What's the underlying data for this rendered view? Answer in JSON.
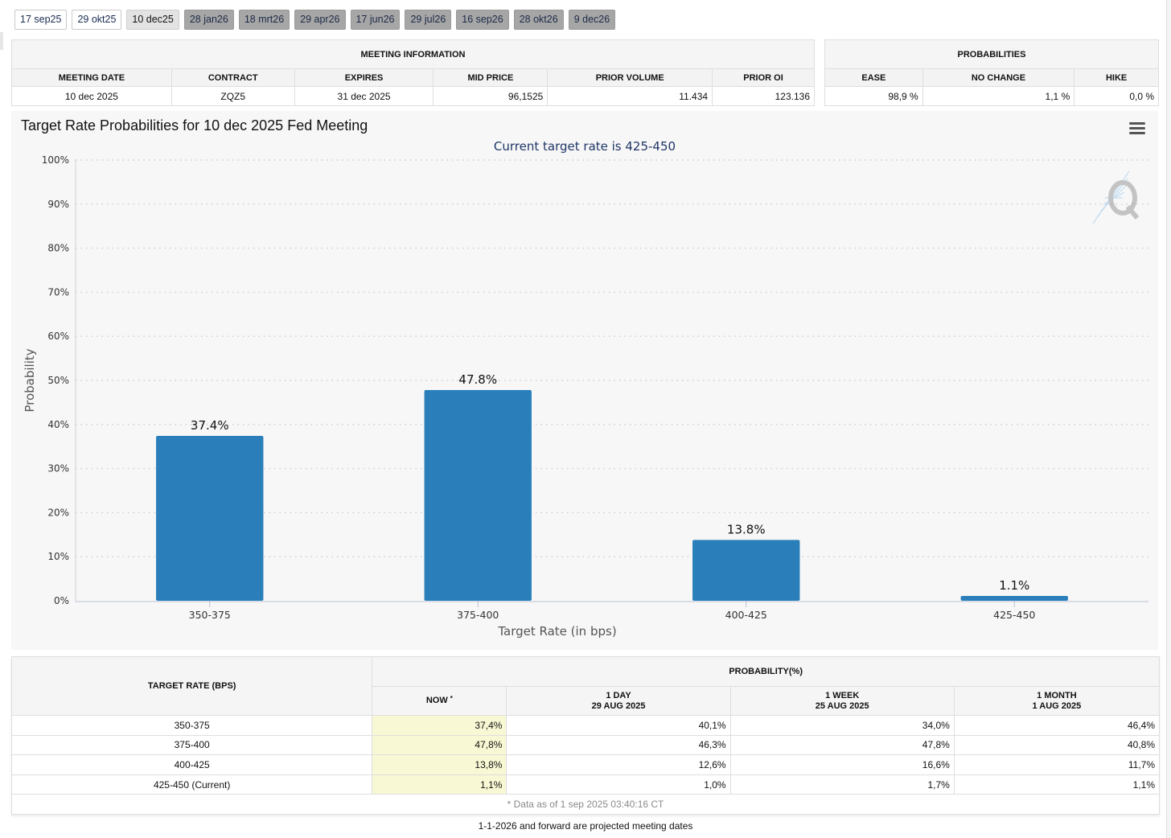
{
  "tabs": [
    {
      "label": "17 sep25",
      "state": "past"
    },
    {
      "label": "29 okt25",
      "state": "past"
    },
    {
      "label": "10 dec25",
      "state": "selected"
    },
    {
      "label": "28 jan26",
      "state": "future"
    },
    {
      "label": "18 mrt26",
      "state": "future"
    },
    {
      "label": "29 apr26",
      "state": "future"
    },
    {
      "label": "17 jun26",
      "state": "future"
    },
    {
      "label": "29 jul26",
      "state": "future"
    },
    {
      "label": "16 sep26",
      "state": "future"
    },
    {
      "label": "28 okt26",
      "state": "future"
    },
    {
      "label": "9 dec26",
      "state": "future"
    }
  ],
  "meeting_info": {
    "caption": "MEETING INFORMATION",
    "headers": [
      "MEETING DATE",
      "CONTRACT",
      "EXPIRES",
      "MID PRICE",
      "PRIOR VOLUME",
      "PRIOR OI"
    ],
    "row": [
      "10 dec 2025",
      "ZQZ5",
      "31 dec 2025",
      "96,1525",
      "11.434",
      "123.136"
    ]
  },
  "probabilities": {
    "caption": "PROBABILITIES",
    "headers": [
      "EASE",
      "NO CHANGE",
      "HIKE"
    ],
    "row": [
      "98,9 %",
      "1,1 %",
      "0,0 %"
    ]
  },
  "chart_title": "Target Rate Probabilities for 10 dec 2025 Fed Meeting",
  "chart_data": {
    "type": "bar",
    "title": "Target Rate Probabilities for 10 dec 2025 Fed Meeting",
    "subtitle": "Current target rate is 425-450",
    "categories": [
      "350-375",
      "375-400",
      "400-425",
      "425-450"
    ],
    "values": [
      37.4,
      47.8,
      13.8,
      1.1
    ],
    "data_labels": [
      "37.4%",
      "47.8%",
      "13.8%",
      "1.1%"
    ],
    "xlabel": "Target Rate (in bps)",
    "ylabel": "Probability",
    "ylim": [
      0,
      100
    ],
    "yticks": [
      0,
      10,
      20,
      30,
      40,
      50,
      60,
      70,
      80,
      90,
      100
    ],
    "ytick_labels": [
      "0%",
      "10%",
      "20%",
      "30%",
      "40%",
      "50%",
      "60%",
      "70%",
      "80%",
      "90%",
      "100%"
    ],
    "grid": true,
    "bar_color": "#2a7fba"
  },
  "prob_table": {
    "col_target": "TARGET RATE (BPS)",
    "group_header": "PROBABILITY(%)",
    "now_label": "NOW",
    "now_mark": "*",
    "cols": [
      {
        "line1": "1 DAY",
        "line2": "29 AUG 2025"
      },
      {
        "line1": "1 WEEK",
        "line2": "25 AUG 2025"
      },
      {
        "line1": "1 MONTH",
        "line2": "1 AUG 2025"
      }
    ],
    "rows": [
      {
        "rate": "350-375",
        "now": "37,4%",
        "day": "40,1%",
        "week": "34,0%",
        "month": "46,4%"
      },
      {
        "rate": "375-400",
        "now": "47,8%",
        "day": "46,3%",
        "week": "47,8%",
        "month": "40,8%"
      },
      {
        "rate": "400-425",
        "now": "13,8%",
        "day": "12,6%",
        "week": "16,6%",
        "month": "11,7%"
      },
      {
        "rate": "425-450 (Current)",
        "now": "1,1%",
        "day": "1,0%",
        "week": "1,7%",
        "month": "1,1%"
      }
    ],
    "note": "* Data as of 1 sep 2025 03:40:16 CT"
  },
  "footer": "1-1-2026 and forward are projected meeting dates"
}
